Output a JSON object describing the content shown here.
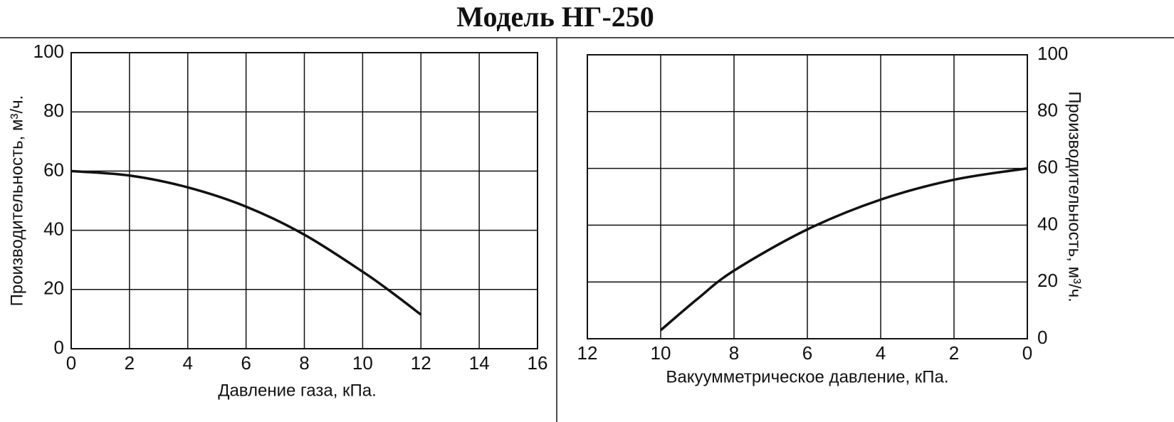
{
  "title": "Модель НГ-250",
  "chart_data": [
    {
      "type": "line",
      "x_label": "Давление газа, кПа.",
      "y_label": "Производительность, м³/ч.",
      "x": [
        0,
        2,
        4,
        6,
        8,
        10,
        11,
        12
      ],
      "series": [
        {
          "color": "#111111",
          "values": [
            60,
            58.5,
            54.5,
            48,
            38.5,
            26,
            19,
            11.5
          ]
        }
      ],
      "xlim": [
        0,
        16
      ],
      "xticks": [
        0,
        2,
        4,
        6,
        8,
        10,
        12,
        14,
        16
      ],
      "ylim": [
        0,
        100
      ],
      "yticks": [
        0,
        20,
        40,
        60,
        80,
        100
      ],
      "grid": true,
      "y_axis_side": "left"
    },
    {
      "type": "line",
      "x_label": "Вакуумметрическое давление, кПа.",
      "y_label": "Производительность, м³/ч.",
      "x": [
        10,
        9,
        8,
        6,
        4,
        2,
        0
      ],
      "series": [
        {
          "color": "#111111",
          "values": [
            3,
            14,
            24,
            38.5,
            49,
            56,
            60
          ]
        }
      ],
      "xlim": [
        12,
        0
      ],
      "xticks": [
        12,
        10,
        8,
        6,
        4,
        2,
        0
      ],
      "ylim": [
        0,
        100
      ],
      "yticks": [
        0,
        20,
        40,
        60,
        80,
        100
      ],
      "grid": true,
      "y_axis_side": "right"
    }
  ]
}
